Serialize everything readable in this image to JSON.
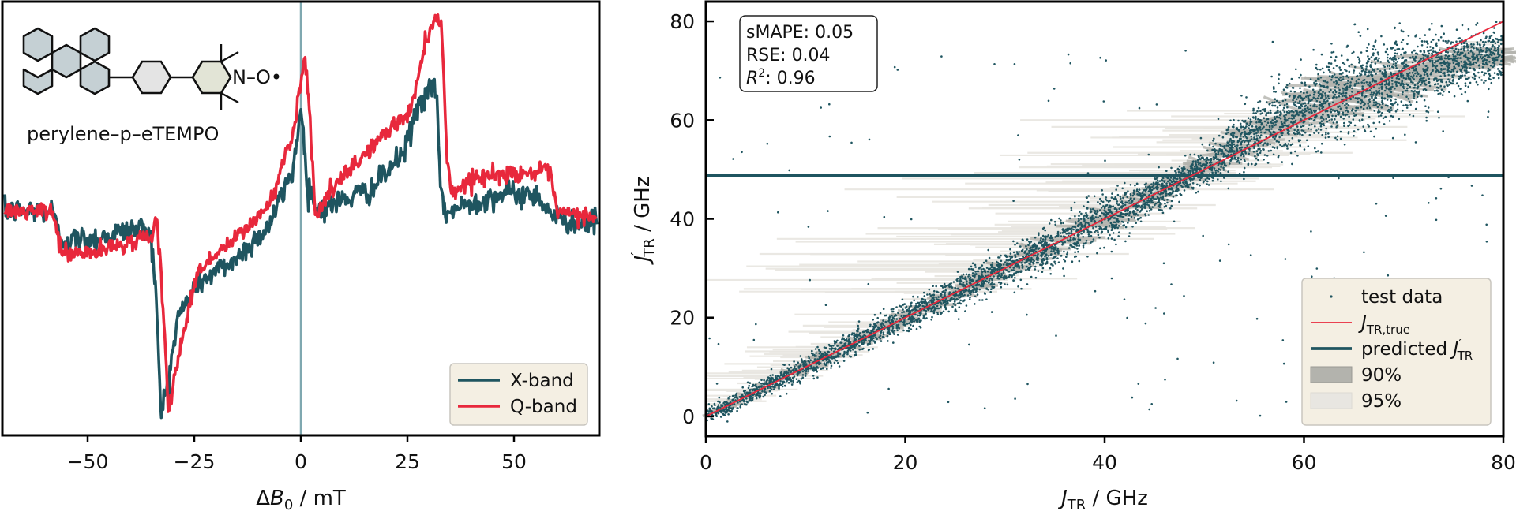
{
  "figure": {
    "panels": [
      "left-epr-spectra",
      "right-prediction-scatter"
    ]
  },
  "chart_data": [
    {
      "type": "line",
      "title": "",
      "inset_label": "perylene–p–eTEMPO",
      "inset_molecule_labels": {
        "nitroxide": "N–O•"
      },
      "xlabel": "ΔB0 / mT",
      "xlabel_parts": {
        "delta": "Δ",
        "sym": "B",
        "sub": "0",
        "unit": " / mT"
      },
      "ylabel": "",
      "xlim": [
        -70,
        70
      ],
      "ylim": [
        0,
        100
      ],
      "y_units": "arbitrary (no ticks shown)",
      "xticks": [
        -50,
        -25,
        0,
        25,
        50
      ],
      "xtick_labels": [
        "−50",
        "−25",
        "0",
        "25",
        "50"
      ],
      "vline": {
        "x": 0,
        "color": "#7fa8b0"
      },
      "legend": {
        "position": "lower-right",
        "entries": [
          "X-band",
          "Q-band"
        ]
      },
      "series": [
        {
          "name": "X-band",
          "color": "#1f5560",
          "x": [
            -69.4,
            -58.3,
            -56.5,
            -48,
            -38.9,
            -35.2,
            -33.9,
            -32.8,
            -31.1,
            -28.7,
            -24.1,
            -14.8,
            -7.4,
            -1.9,
            0,
            1.5,
            3.7,
            9.3,
            16.7,
            24.1,
            27.8,
            30.6,
            31.9,
            33,
            34.3,
            40.7,
            48.1,
            55.6,
            59.3,
            63,
            70
          ],
          "y": [
            51.6,
            52,
            45,
            45.5,
            47.6,
            47.6,
            31,
            4.5,
            13,
            27.6,
            35,
            41,
            48.5,
            61,
            75.5,
            58.5,
            52,
            54,
            56.7,
            65,
            76.7,
            80,
            77.6,
            53,
            51.3,
            54,
            55.8,
            55.3,
            50.4,
            49.5,
            49
          ]
        },
        {
          "name": "Q-band",
          "color": "#e8283c",
          "x": [
            -69.4,
            -58.3,
            -55.9,
            -48,
            -36.1,
            -33.7,
            -32.4,
            -31.1,
            -28.7,
            -24.1,
            -14.8,
            -7.4,
            -1.5,
            0.9,
            2.2,
            3.3,
            7.4,
            16.7,
            25.9,
            28.7,
            30.6,
            33,
            34.3,
            35.2,
            40.7,
            50,
            58.3,
            60.2,
            70
          ],
          "y": [
            51.6,
            51.6,
            41.8,
            42.2,
            45.8,
            48.5,
            31.3,
            5.5,
            18.5,
            38.2,
            45.8,
            53,
            71.3,
            88,
            73,
            51,
            56.7,
            66.7,
            75,
            88.5,
            95.3,
            95.5,
            64,
            55.8,
            59.5,
            60.4,
            60.7,
            51.3,
            50.4
          ]
        }
      ]
    },
    {
      "type": "scatter",
      "title": "",
      "xlabel": "J_TR / GHz",
      "xlabel_parts": {
        "sym": "J",
        "sub": "TR",
        "unit": " / GHz"
      },
      "ylabel": "J'_TR / GHz",
      "ylabel_parts": {
        "sym": "J",
        "prime": "′",
        "sub": "TR",
        "unit": " / GHz"
      },
      "xlim": [
        0,
        80
      ],
      "ylim": [
        -4,
        84
      ],
      "xticks": [
        0,
        20,
        40,
        60,
        80
      ],
      "yticks": [
        0,
        20,
        40,
        60,
        80
      ],
      "metrics": [
        {
          "label": "sMAPE",
          "value": "0.05"
        },
        {
          "label": "RSE",
          "value": "0.04"
        },
        {
          "label": "R2",
          "label_display": "R",
          "sup": "2",
          "value": "0.96"
        }
      ],
      "reference_line": {
        "name": "J_TR,true",
        "color": "#e8283c",
        "x": [
          0,
          80
        ],
        "y": [
          0,
          80
        ]
      },
      "predicted_line": {
        "name": "predicted J'_TR",
        "color": "#1f5560",
        "y": 48.8
      },
      "test_data": {
        "name": "test data",
        "color": "#1f5560",
        "trend_x": [
          0,
          10,
          20,
          30,
          40,
          48,
          55,
          60,
          65,
          70,
          75,
          80
        ],
        "trend_y": [
          0,
          10,
          20,
          30,
          40,
          48,
          57,
          62,
          66,
          69,
          72,
          73.5
        ],
        "spread": [
          0.8,
          1.2,
          1.5,
          1.8,
          2.5,
          1.5,
          3,
          4,
          4.5,
          4,
          3,
          2.5
        ],
        "outlier_fraction": 0.03
      },
      "intervals": [
        {
          "name": "90%",
          "color": "#b3b3ad"
        },
        {
          "name": "95%",
          "color": "#e8e6e1"
        }
      ],
      "legend": {
        "position": "lower-right",
        "entries": [
          {
            "label": "test data",
            "kind": "marker"
          },
          {
            "label": "J",
            "sub": "TR,true",
            "kind": "line-red"
          },
          {
            "label": "predicted J",
            "prime": "′",
            "sub": "TR",
            "kind": "line-teal"
          },
          {
            "label": "90%",
            "kind": "patch-dark"
          },
          {
            "label": "95%",
            "kind": "patch-light"
          }
        ]
      },
      "grid": false
    }
  ],
  "colors": {
    "x_band": "#1f5560",
    "q_band": "#e8283c",
    "zero_line": "#7fa8b0",
    "legend_bg": "#f4efe3",
    "legend_border": "#c9c6bf",
    "band_90": "#b3b3ad",
    "band_95": "#e8e6e1",
    "molecule_perylene": "#c5d0d4",
    "molecule_phenyl": "#e4e4e4",
    "molecule_tempo": "#e2e4d6"
  }
}
